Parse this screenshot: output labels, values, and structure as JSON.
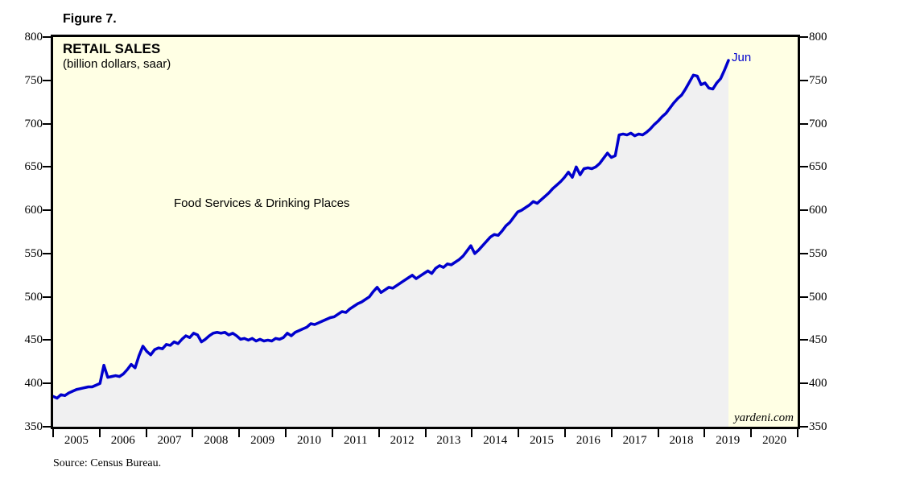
{
  "figure_label": "Figure 7.",
  "chart": {
    "title": "RETAIL SALES",
    "subtitle": "(billion dollars, saar)",
    "series_label": "Food Services & Drinking Places",
    "end_point_label": "Jun",
    "watermark": "yardeni.com",
    "colors": {
      "plot_background": "#FFFFE4",
      "area_fill": "#F0F0F1",
      "line": "#0000CD",
      "end_label_text": "#0000CD",
      "frame": "#000000"
    }
  },
  "axes": {
    "y_tick_values": [
      800,
      750,
      700,
      650,
      600,
      550,
      500,
      450,
      400,
      350
    ],
    "x_year_labels": [
      2005,
      2006,
      2007,
      2008,
      2009,
      2010,
      2011,
      2012,
      2013,
      2014,
      2015,
      2016,
      2017,
      2018,
      2019,
      2020
    ],
    "x_boundary_years": [
      2005,
      2006,
      2007,
      2008,
      2009,
      2010,
      2011,
      2012,
      2013,
      2014,
      2015,
      2016,
      2017,
      2018,
      2019,
      2020,
      2021
    ]
  },
  "source_note": "Source: Census Bureau.",
  "chart_data": {
    "type": "area",
    "title": "RETAIL SALES",
    "subtitle": "(billion dollars, saar)",
    "ylabel": "billion dollars, saar",
    "ylim": [
      350,
      800
    ],
    "xlim": [
      2005,
      2021
    ],
    "grid": false,
    "legend_position": "none",
    "annotation_last_point": "Jun",
    "series": [
      {
        "name": "Food Services & Drinking Places",
        "frequency": "monthly",
        "start": "2005-01",
        "end": "2019-06",
        "values": [
          385,
          383,
          387,
          386,
          389,
          391,
          393,
          394,
          395,
          396,
          396,
          398,
          400,
          421,
          407,
          408,
          409,
          408,
          411,
          416,
          422,
          418,
          432,
          443,
          437,
          433,
          439,
          441,
          440,
          445,
          444,
          448,
          446,
          451,
          455,
          453,
          458,
          456,
          448,
          451,
          455,
          458,
          459,
          458,
          459,
          456,
          458,
          455,
          451,
          452,
          450,
          452,
          449,
          451,
          449,
          450,
          449,
          452,
          451,
          453,
          458,
          455,
          459,
          461,
          463,
          465,
          469,
          468,
          470,
          472,
          474,
          476,
          477,
          480,
          483,
          482,
          486,
          489,
          492,
          494,
          497,
          500,
          506,
          511,
          505,
          508,
          511,
          510,
          513,
          516,
          519,
          522,
          525,
          521,
          524,
          527,
          530,
          527,
          533,
          536,
          534,
          538,
          537,
          540,
          543,
          547,
          553,
          559,
          550,
          554,
          559,
          564,
          569,
          572,
          571,
          576,
          582,
          586,
          592,
          598,
          600,
          603,
          606,
          610,
          608,
          612,
          616,
          620,
          625,
          629,
          633,
          638,
          644,
          638,
          650,
          641,
          648,
          649,
          648,
          650,
          654,
          660,
          666,
          661,
          663,
          687,
          688,
          687,
          689,
          686,
          688,
          687,
          690,
          694,
          699,
          703,
          708,
          712,
          718,
          724,
          729,
          733,
          740,
          748,
          756,
          755,
          745,
          747,
          741,
          740,
          747,
          752,
          762,
          773
        ]
      }
    ]
  }
}
